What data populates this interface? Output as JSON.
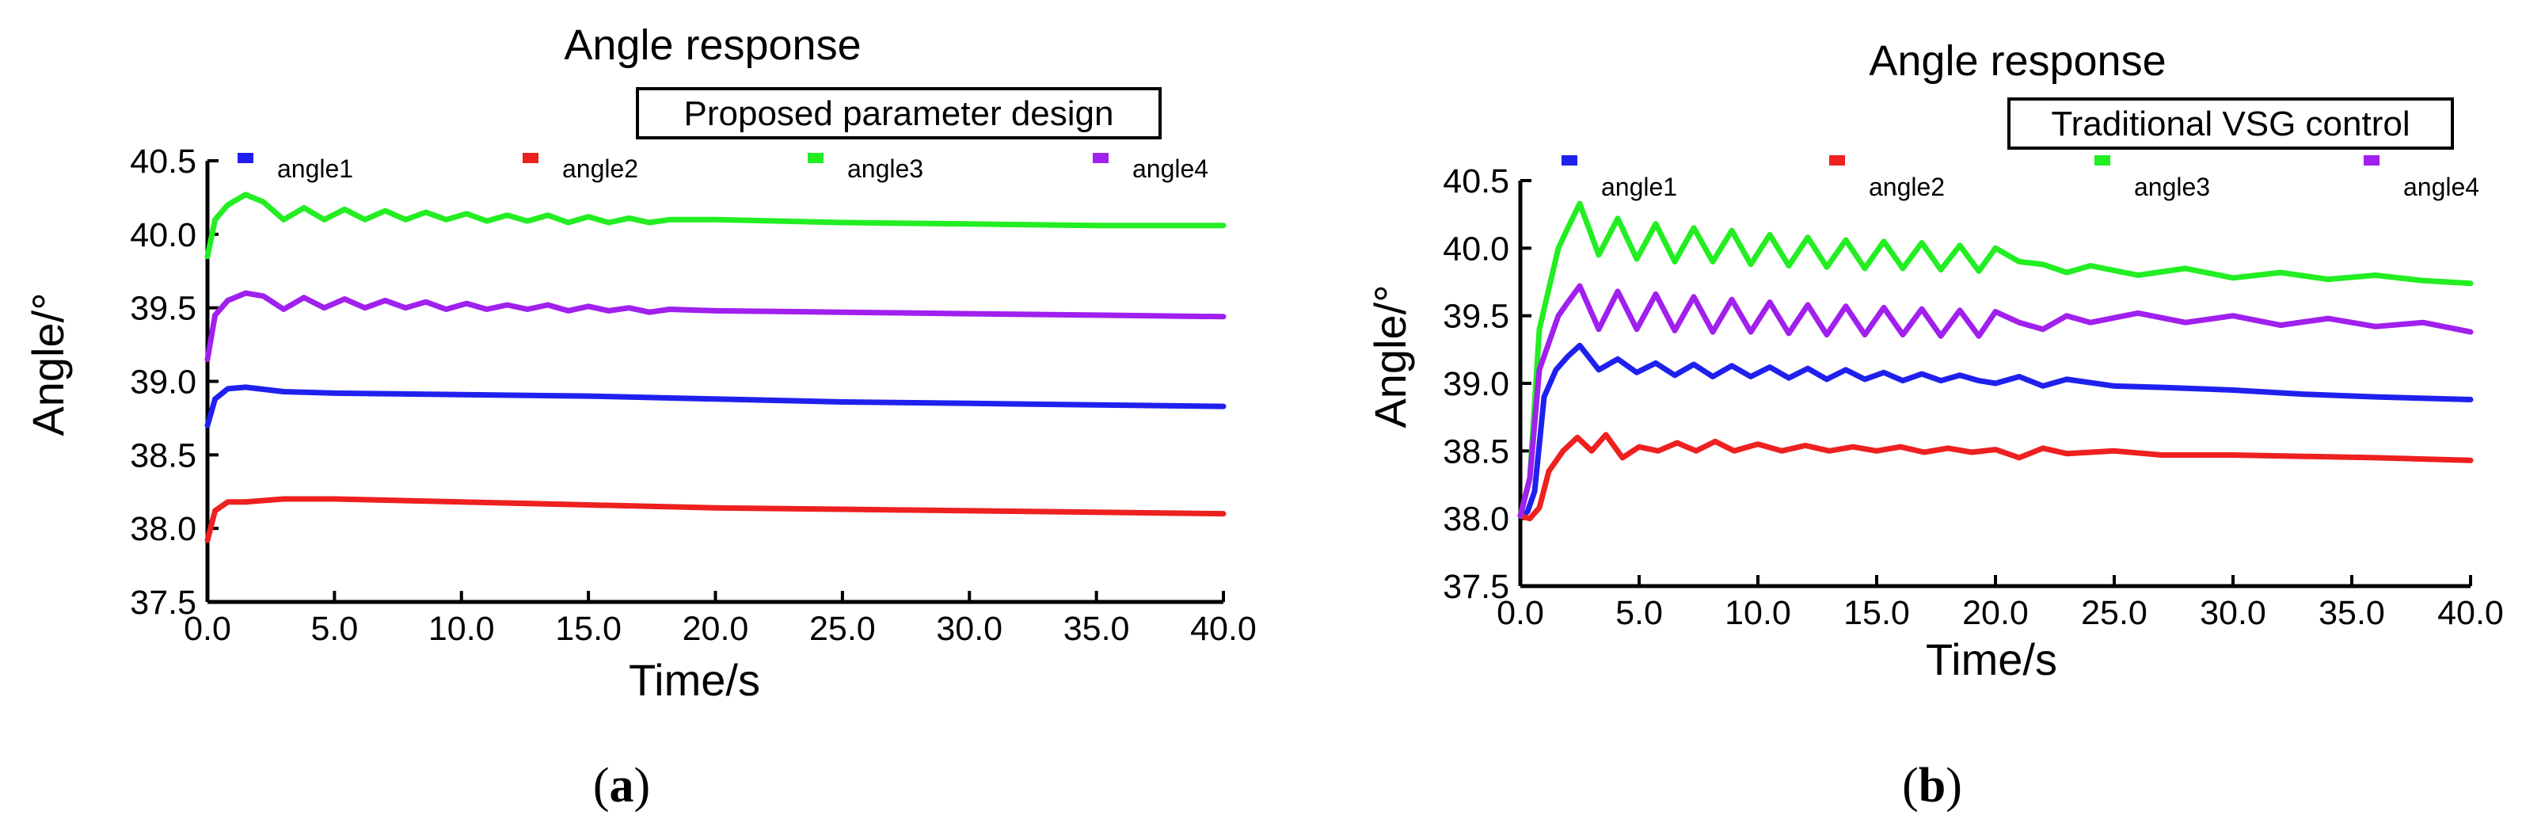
{
  "chart_data": [
    {
      "type": "line",
      "title": "Angle response",
      "annotation": "Proposed parameter design",
      "caption_letter": "a",
      "xlabel": "Time/s",
      "ylabel": "Angle/°",
      "xlim": [
        0,
        40
      ],
      "ylim": [
        37.5,
        40.5
      ],
      "x_ticks": [
        "0.0",
        "5.0",
        "10.0",
        "15.0",
        "20.0",
        "25.0",
        "30.0",
        "35.0",
        "40.0"
      ],
      "y_ticks": [
        "37.5",
        "38.0",
        "38.5",
        "39.0",
        "39.5",
        "40.0",
        "40.5"
      ],
      "series": [
        {
          "name": "angle1",
          "color": "#2020ee",
          "x": [
            0,
            0.3,
            0.8,
            1.5,
            3,
            5,
            10,
            15,
            20,
            25,
            30,
            35,
            40
          ],
          "y": [
            38.7,
            38.88,
            38.95,
            38.96,
            38.93,
            38.92,
            38.91,
            38.9,
            38.88,
            38.86,
            38.85,
            38.84,
            38.83
          ]
        },
        {
          "name": "angle2",
          "color": "#ee2020",
          "x": [
            0,
            0.3,
            0.8,
            1.5,
            3,
            5,
            10,
            15,
            20,
            25,
            30,
            35,
            40
          ],
          "y": [
            37.92,
            38.12,
            38.18,
            38.18,
            38.2,
            38.2,
            38.18,
            38.16,
            38.14,
            38.13,
            38.12,
            38.11,
            38.1
          ]
        },
        {
          "name": "angle3",
          "color": "#22ee22",
          "x": [
            0,
            0.3,
            0.8,
            1.5,
            2.2,
            3,
            3.8,
            4.6,
            5.4,
            6.2,
            7,
            7.8,
            8.6,
            9.4,
            10.2,
            11,
            11.8,
            12.6,
            13.4,
            14.2,
            15,
            15.8,
            16.6,
            17.4,
            18.2,
            20,
            25,
            30,
            35,
            40
          ],
          "y": [
            39.85,
            40.1,
            40.2,
            40.27,
            40.22,
            40.1,
            40.18,
            40.1,
            40.17,
            40.1,
            40.16,
            40.1,
            40.15,
            40.1,
            40.14,
            40.09,
            40.13,
            40.09,
            40.13,
            40.08,
            40.12,
            40.08,
            40.11,
            40.08,
            40.1,
            40.1,
            40.08,
            40.07,
            40.06,
            40.06
          ]
        },
        {
          "name": "angle4",
          "color": "#a020ee",
          "x": [
            0,
            0.3,
            0.8,
            1.5,
            2.2,
            3,
            3.8,
            4.6,
            5.4,
            6.2,
            7,
            7.8,
            8.6,
            9.4,
            10.2,
            11,
            11.8,
            12.6,
            13.4,
            14.2,
            15,
            15.8,
            16.6,
            17.4,
            18.2,
            20,
            25,
            30,
            35,
            40
          ],
          "y": [
            39.15,
            39.45,
            39.55,
            39.6,
            39.58,
            39.49,
            39.57,
            39.5,
            39.56,
            39.5,
            39.55,
            39.5,
            39.54,
            39.49,
            39.53,
            39.49,
            39.52,
            39.49,
            39.52,
            39.48,
            39.51,
            39.48,
            39.5,
            39.47,
            39.49,
            39.48,
            39.47,
            39.46,
            39.45,
            39.44
          ]
        }
      ]
    },
    {
      "type": "line",
      "title": "Angle response",
      "annotation": "Traditional VSG control",
      "caption_letter": "b",
      "xlabel": "Time/s",
      "ylabel": "Angle/°",
      "xlim": [
        0,
        40
      ],
      "ylim": [
        37.5,
        40.5
      ],
      "x_ticks": [
        "0.0",
        "5.0",
        "10.0",
        "15.0",
        "20.0",
        "25.0",
        "30.0",
        "35.0",
        "40.0"
      ],
      "y_ticks": [
        "37.5",
        "38.0",
        "38.5",
        "39.0",
        "39.5",
        "40.0",
        "40.5"
      ],
      "series": [
        {
          "name": "angle1",
          "color": "#2020ee",
          "x": [
            0,
            0.3,
            0.6,
            1,
            1.5,
            2,
            2.5,
            3.3,
            4.1,
            4.9,
            5.7,
            6.5,
            7.3,
            8.1,
            8.9,
            9.7,
            10.5,
            11.3,
            12.1,
            12.9,
            13.7,
            14.5,
            15.3,
            16.1,
            16.9,
            17.7,
            18.5,
            19.3,
            20,
            21,
            22,
            23,
            25,
            27,
            30,
            33,
            36,
            40
          ],
          "y": [
            38.02,
            38.05,
            38.2,
            38.9,
            39.1,
            39.2,
            39.28,
            39.1,
            39.18,
            39.08,
            39.15,
            39.06,
            39.14,
            39.05,
            39.13,
            39.05,
            39.12,
            39.04,
            39.11,
            39.03,
            39.1,
            39.03,
            39.08,
            39.02,
            39.07,
            39.02,
            39.06,
            39.02,
            39.0,
            39.05,
            38.98,
            39.03,
            38.98,
            38.97,
            38.95,
            38.92,
            38.9,
            38.88
          ]
        },
        {
          "name": "angle2",
          "color": "#ee2020",
          "x": [
            0,
            0.4,
            0.8,
            1.2,
            1.8,
            2.4,
            3,
            3.6,
            4.3,
            5,
            5.8,
            6.6,
            7.4,
            8.2,
            9,
            10,
            11,
            12,
            13,
            14,
            15,
            16,
            17,
            18,
            19,
            20,
            21,
            22,
            23,
            25,
            27,
            30,
            33,
            36,
            40
          ],
          "y": [
            38.02,
            38.0,
            38.08,
            38.35,
            38.5,
            38.6,
            38.5,
            38.62,
            38.45,
            38.53,
            38.5,
            38.56,
            38.5,
            38.57,
            38.5,
            38.55,
            38.5,
            38.54,
            38.5,
            38.53,
            38.5,
            38.53,
            38.49,
            38.52,
            38.49,
            38.51,
            38.45,
            38.52,
            38.48,
            38.5,
            38.47,
            38.47,
            38.46,
            38.45,
            38.43
          ]
        },
        {
          "name": "angle3",
          "color": "#22ee22",
          "x": [
            0,
            0.4,
            0.8,
            1.2,
            1.6,
            2,
            2.5,
            3.3,
            4.1,
            4.9,
            5.7,
            6.5,
            7.3,
            8.1,
            8.9,
            9.7,
            10.5,
            11.3,
            12.1,
            12.9,
            13.7,
            14.5,
            15.3,
            16.1,
            16.9,
            17.7,
            18.5,
            19.3,
            20,
            21,
            22,
            23,
            24,
            26,
            28,
            30,
            32,
            34,
            36,
            38,
            40
          ],
          "y": [
            38.02,
            38.3,
            39.4,
            39.7,
            40.0,
            40.15,
            40.33,
            39.95,
            40.22,
            39.92,
            40.18,
            39.9,
            40.15,
            39.9,
            40.13,
            39.88,
            40.1,
            39.87,
            40.08,
            39.86,
            40.06,
            39.85,
            40.05,
            39.85,
            40.04,
            39.84,
            40.02,
            39.83,
            40.0,
            39.9,
            39.88,
            39.82,
            39.87,
            39.8,
            39.85,
            39.78,
            39.82,
            39.77,
            39.8,
            39.76,
            39.74
          ]
        },
        {
          "name": "angle4",
          "color": "#a020ee",
          "x": [
            0,
            0.4,
            0.8,
            1.2,
            1.6,
            2,
            2.5,
            3.3,
            4.1,
            4.9,
            5.7,
            6.5,
            7.3,
            8.1,
            8.9,
            9.7,
            10.5,
            11.3,
            12.1,
            12.9,
            13.7,
            14.5,
            15.3,
            16.1,
            16.9,
            17.7,
            18.5,
            19.3,
            20,
            21,
            22,
            23,
            24,
            26,
            28,
            30,
            32,
            34,
            36,
            38,
            40
          ],
          "y": [
            38.02,
            38.3,
            39.1,
            39.3,
            39.5,
            39.6,
            39.72,
            39.4,
            39.68,
            39.4,
            39.66,
            39.39,
            39.64,
            39.38,
            39.62,
            39.38,
            39.6,
            39.37,
            39.58,
            39.36,
            39.57,
            39.36,
            39.56,
            39.36,
            39.55,
            39.35,
            39.54,
            39.35,
            39.53,
            39.45,
            39.4,
            39.5,
            39.45,
            39.52,
            39.45,
            39.5,
            39.43,
            39.48,
            39.42,
            39.45,
            39.38
          ]
        }
      ]
    }
  ]
}
